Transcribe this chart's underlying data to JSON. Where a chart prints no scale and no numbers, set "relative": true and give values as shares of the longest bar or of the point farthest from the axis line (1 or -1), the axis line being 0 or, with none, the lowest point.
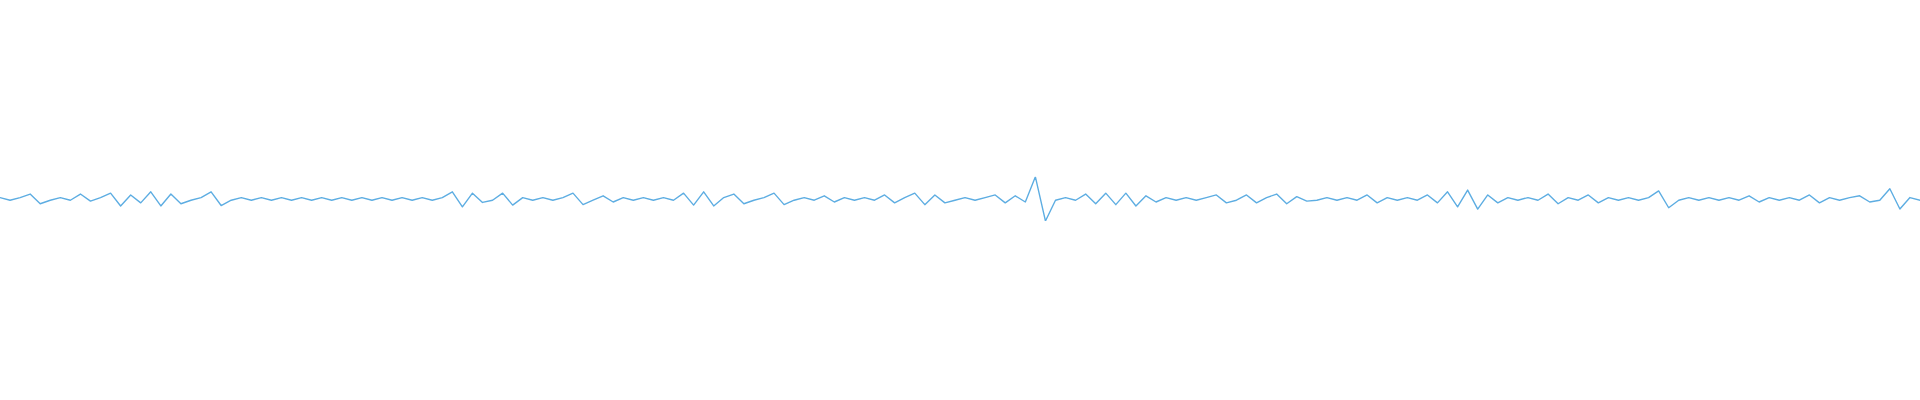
{
  "chart_data": {
    "type": "line",
    "relative": true,
    "categories": [
      null,
      null,
      null,
      null,
      null,
      null,
      null,
      null,
      null,
      null,
      null,
      null,
      null,
      null,
      null,
      null,
      null,
      null,
      null,
      null,
      null,
      null,
      null,
      null,
      null,
      null,
      null,
      null,
      null,
      null,
      null,
      null,
      null,
      null,
      null,
      null,
      null,
      null,
      null,
      null,
      null,
      null,
      null,
      null,
      null,
      null,
      null,
      null,
      null,
      null,
      null,
      null,
      null,
      null,
      null,
      null,
      null,
      null,
      null,
      null,
      null,
      null,
      null,
      null,
      null,
      null,
      null,
      null,
      null,
      null,
      null,
      null,
      null,
      null,
      null,
      null,
      null,
      null,
      null,
      null,
      null,
      null,
      null,
      null,
      null,
      null,
      null,
      null,
      null,
      null,
      null,
      null,
      null,
      null,
      null,
      null,
      null,
      null,
      null,
      null,
      null,
      null,
      null,
      null,
      null,
      null,
      null,
      null,
      null,
      null,
      null,
      null,
      null,
      null,
      null,
      null,
      null,
      null,
      null,
      null,
      null,
      null,
      null,
      null,
      null,
      null,
      null,
      null,
      null,
      null,
      null,
      null,
      null,
      null,
      null,
      null,
      null,
      null,
      null,
      null,
      null,
      null,
      null,
      null,
      null,
      null,
      null,
      null,
      null,
      null,
      null,
      null,
      null,
      null,
      null,
      null,
      null,
      null,
      null,
      null,
      null,
      null,
      null,
      null,
      null,
      null,
      null,
      null,
      null,
      null,
      null,
      null,
      null,
      null,
      null,
      null,
      null,
      null,
      null,
      null,
      null,
      null,
      null,
      null,
      null,
      null,
      null,
      null,
      null,
      null,
      null,
      null
    ],
    "series": [
      {
        "color": "#5dade2",
        "values": [
          0.53,
          0.47,
          0.53,
          0.61,
          0.39,
          0.47,
          0.53,
          0.47,
          0.61,
          0.45,
          0.53,
          0.63,
          0.34,
          0.59,
          0.41,
          0.66,
          0.34,
          0.61,
          0.39,
          0.47,
          0.53,
          0.66,
          0.35,
          0.47,
          0.53,
          0.47,
          0.53,
          0.47,
          0.53,
          0.47,
          0.53,
          0.47,
          0.53,
          0.47,
          0.53,
          0.47,
          0.53,
          0.47,
          0.53,
          0.47,
          0.53,
          0.47,
          0.53,
          0.47,
          0.53,
          0.66,
          0.32,
          0.63,
          0.42,
          0.47,
          0.63,
          0.36,
          0.53,
          0.47,
          0.53,
          0.47,
          0.53,
          0.63,
          0.37,
          0.47,
          0.57,
          0.43,
          0.53,
          0.47,
          0.53,
          0.47,
          0.53,
          0.47,
          0.63,
          0.36,
          0.66,
          0.34,
          0.53,
          0.61,
          0.39,
          0.47,
          0.53,
          0.63,
          0.37,
          0.47,
          0.53,
          0.47,
          0.57,
          0.43,
          0.53,
          0.47,
          0.53,
          0.47,
          0.59,
          0.41,
          0.53,
          0.63,
          0.37,
          0.59,
          0.41,
          0.47,
          0.53,
          0.47,
          0.53,
          0.59,
          0.41,
          0.57,
          0.43,
          1,
          0,
          0.47,
          0.53,
          0.47,
          0.61,
          0.39,
          0.63,
          0.37,
          0.63,
          0.34,
          0.57,
          0.43,
          0.53,
          0.47,
          0.53,
          0.47,
          0.53,
          0.59,
          0.41,
          0.47,
          0.59,
          0.41,
          0.53,
          0.61,
          0.39,
          0.55,
          0.45,
          0.47,
          0.53,
          0.47,
          0.53,
          0.47,
          0.59,
          0.41,
          0.53,
          0.47,
          0.53,
          0.47,
          0.59,
          0.41,
          0.66,
          0.32,
          0.7,
          0.27,
          0.59,
          0.41,
          0.53,
          0.47,
          0.53,
          0.47,
          0.61,
          0.39,
          0.53,
          0.47,
          0.59,
          0.41,
          0.53,
          0.47,
          0.53,
          0.47,
          0.53,
          0.68,
          0.3,
          0.47,
          0.53,
          0.47,
          0.53,
          0.47,
          0.53,
          0.47,
          0.57,
          0.43,
          0.53,
          0.47,
          0.53,
          0.47,
          0.59,
          0.41,
          0.53,
          0.47,
          0.53,
          0.57,
          0.43,
          0.47,
          0.73,
          0.27,
          0.53,
          0.47
        ]
      }
    ]
  }
}
